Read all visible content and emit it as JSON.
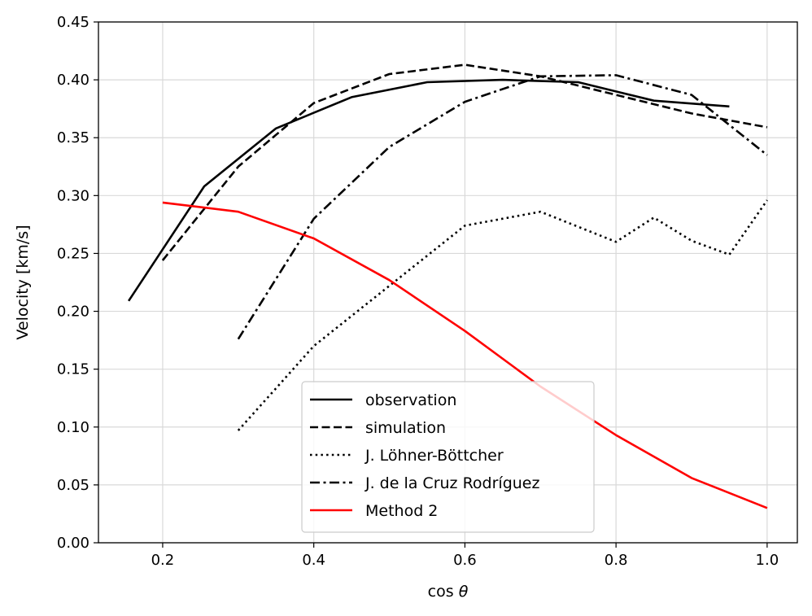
{
  "chart_data": {
    "type": "line",
    "xlabel_prefix": "cos ",
    "xlabel_symbol": "θ",
    "ylabel": "Velocity [km/s]",
    "xlim": [
      0.115,
      1.04
    ],
    "ylim": [
      0.0,
      0.45
    ],
    "xticks": [
      0.2,
      0.4,
      0.6,
      0.8,
      1.0
    ],
    "xtick_labels": [
      "0.2",
      "0.4",
      "0.6",
      "0.8",
      "1.0"
    ],
    "yticks": [
      0.0,
      0.05,
      0.1,
      0.15,
      0.2,
      0.25,
      0.3,
      0.35,
      0.4,
      0.45
    ],
    "ytick_labels": [
      "0.00",
      "0.05",
      "0.10",
      "0.15",
      "0.20",
      "0.25",
      "0.30",
      "0.35",
      "0.40",
      "0.45"
    ],
    "grid": true,
    "legend_position": "lower-center",
    "series": [
      {
        "name": "observation",
        "color": "#000000",
        "style": "solid",
        "x": [
          0.155,
          0.255,
          0.35,
          0.45,
          0.55,
          0.65,
          0.75,
          0.85,
          0.95
        ],
        "y": [
          0.209,
          0.308,
          0.358,
          0.385,
          0.398,
          0.4,
          0.398,
          0.382,
          0.377
        ]
      },
      {
        "name": "simulation",
        "color": "#000000",
        "style": "dashed",
        "x": [
          0.2,
          0.3,
          0.4,
          0.5,
          0.6,
          0.7,
          0.8,
          0.9,
          1.0
        ],
        "y": [
          0.244,
          0.325,
          0.38,
          0.405,
          0.413,
          0.403,
          0.387,
          0.371,
          0.359
        ]
      },
      {
        "name": "J. Löhner-Böttcher",
        "color": "#000000",
        "style": "dotted",
        "x": [
          0.3,
          0.4,
          0.5,
          0.6,
          0.7,
          0.8,
          0.85,
          0.9,
          0.95,
          1.0
        ],
        "y": [
          0.097,
          0.17,
          0.222,
          0.274,
          0.286,
          0.26,
          0.281,
          0.261,
          0.249,
          0.296
        ]
      },
      {
        "name": "J. de la Cruz Rodríguez",
        "color": "#000000",
        "style": "dashdot",
        "x": [
          0.3,
          0.4,
          0.5,
          0.6,
          0.7,
          0.8,
          0.9,
          1.0
        ],
        "y": [
          0.176,
          0.28,
          0.342,
          0.381,
          0.403,
          0.404,
          0.387,
          0.335
        ]
      },
      {
        "name": "Method 2",
        "color": "#ff0000",
        "style": "solid",
        "x": [
          0.2,
          0.3,
          0.4,
          0.5,
          0.6,
          0.7,
          0.8,
          0.9,
          1.0
        ],
        "y": [
          0.294,
          0.286,
          0.263,
          0.227,
          0.183,
          0.135,
          0.093,
          0.056,
          0.03
        ]
      }
    ]
  }
}
